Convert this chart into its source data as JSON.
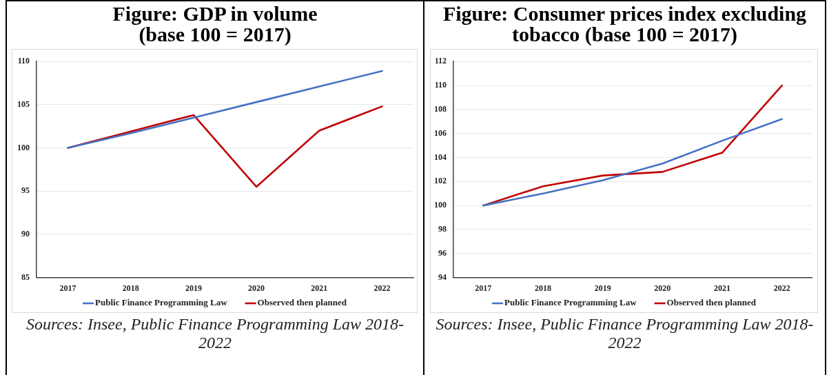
{
  "chart_data": [
    {
      "type": "line",
      "title": "Figure: GDP in volume (base 100 = 2017)",
      "categories": [
        "2017",
        "2018",
        "2019",
        "2020",
        "2021",
        "2022"
      ],
      "series": [
        {
          "name": "Public Finance Programming Law",
          "color": "#4472c4",
          "values": [
            100,
            101.7,
            103.5,
            105.3,
            107.1,
            108.9
          ]
        },
        {
          "name": "Observed then planned",
          "color": "#c00000",
          "values": [
            100,
            101.9,
            103.8,
            95.5,
            102.0,
            104.8
          ]
        }
      ],
      "ylim": [
        85,
        110
      ],
      "yticks": [
        85,
        90,
        95,
        100,
        105,
        110
      ],
      "grid": "y",
      "legend": "bottom",
      "marker": "none",
      "annotations": [
        "Sources: Insee, Public Finance Programming Law 2018-2022"
      ]
    },
    {
      "type": "line",
      "title": "Figure: Consumer prices index excluding tobacco (base 100 = 2017)",
      "categories": [
        "2017",
        "2018",
        "2019",
        "2020",
        "2021",
        "2022"
      ],
      "series": [
        {
          "name": "Public Finance Programming Law",
          "color": "#4472c4",
          "values": [
            100,
            101.0,
            102.1,
            103.5,
            105.4,
            107.2
          ]
        },
        {
          "name": "Observed then planned",
          "color": "#c00000",
          "values": [
            100,
            101.6,
            102.5,
            102.8,
            104.4,
            110.0
          ]
        }
      ],
      "ylim": [
        94,
        112
      ],
      "yticks": [
        94,
        96,
        98,
        100,
        102,
        104,
        106,
        108,
        110,
        112
      ],
      "grid": "y",
      "legend": "bottom",
      "marker": "none",
      "annotations": [
        "Sources: Insee, Public Finance Programming Law 2018-2022"
      ]
    }
  ]
}
